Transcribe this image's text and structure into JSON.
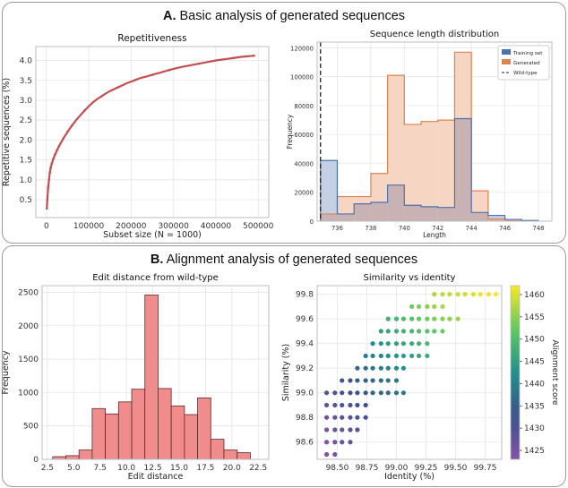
{
  "sections": {
    "a": {
      "letter": "A.",
      "title": "Basic analysis of generated sequences"
    },
    "b": {
      "letter": "B.",
      "title": "Alignment analysis of generated sequences"
    }
  },
  "colors": {
    "repetitive_line": "#c44e52",
    "training": "#4c72b0",
    "training_fill": "#c5d0e4",
    "generated": "#dd8452",
    "generated_fill": "#f6d6c3",
    "overlap_fill": "#c8b2b4",
    "wildtype_line": "#222222",
    "edit_hist_fill": "#f08c8c",
    "edit_hist_edge": "#5a2a2a",
    "grid": "#e6e6e6"
  },
  "chart_data": [
    {
      "id": "repetitiveness",
      "type": "line",
      "title": "Repetitiveness",
      "xlabel": "Subset size (N = 1000)",
      "ylabel": "Repetitive sequences (%)",
      "xlim": [
        -25000,
        525000
      ],
      "ylim": [
        0.05,
        4.35
      ],
      "xticks": [
        0,
        100000,
        200000,
        300000,
        400000,
        500000
      ],
      "yticks": [
        0.5,
        1.0,
        1.5,
        2.0,
        2.5,
        3.0,
        3.5,
        4.0
      ],
      "x": [
        1000,
        2000,
        4000,
        6000,
        8000,
        10000,
        13000,
        16000,
        20000,
        25000,
        30000,
        40000,
        50000,
        60000,
        70000,
        80000,
        90000,
        100000,
        110000,
        120000,
        130000,
        140000,
        150000,
        160000,
        170000,
        180000,
        190000,
        200000,
        210000,
        220000,
        230000,
        240000,
        250000,
        260000,
        270000,
        280000,
        290000,
        300000,
        320000,
        340000,
        360000,
        380000,
        400000,
        420000,
        440000,
        460000,
        480000,
        490000
      ],
      "y": [
        0.28,
        0.5,
        0.8,
        1.0,
        1.18,
        1.3,
        1.42,
        1.52,
        1.63,
        1.74,
        1.85,
        2.04,
        2.21,
        2.36,
        2.5,
        2.62,
        2.74,
        2.85,
        2.95,
        3.03,
        3.1,
        3.17,
        3.23,
        3.28,
        3.33,
        3.38,
        3.43,
        3.47,
        3.51,
        3.55,
        3.58,
        3.61,
        3.64,
        3.67,
        3.7,
        3.73,
        3.76,
        3.79,
        3.84,
        3.88,
        3.92,
        3.96,
        4.0,
        4.03,
        4.06,
        4.09,
        4.11,
        4.12
      ]
    },
    {
      "id": "length-distribution",
      "type": "histogram",
      "title": "Sequence length distribution",
      "xlabel": "Length",
      "ylabel": "Frequency",
      "xlim": [
        734.8,
        748.8
      ],
      "ylim": [
        0,
        124000
      ],
      "xticks": [
        736,
        738,
        740,
        742,
        744,
        746,
        748
      ],
      "yticks": [
        0,
        20000,
        40000,
        60000,
        80000,
        100000,
        120000
      ],
      "bin_edges": [
        735,
        736,
        737,
        738,
        739,
        740,
        741,
        742,
        743,
        744,
        745,
        746,
        747,
        748
      ],
      "series": [
        {
          "name": "Training set",
          "values": [
            42000,
            5000,
            12000,
            13000,
            25000,
            11000,
            10000,
            9500,
            71000,
            6000,
            4000,
            1200,
            500
          ]
        },
        {
          "name": "Generated",
          "values": [
            5000,
            17000,
            17000,
            33000,
            101000,
            67000,
            69000,
            70000,
            117000,
            21000,
            1500,
            300,
            100
          ]
        }
      ],
      "vline": {
        "name": "Wild-type",
        "x": 735
      },
      "legend": "top-right"
    },
    {
      "id": "edit-distance",
      "type": "histogram",
      "title": "Edit distance from wild-type",
      "xlabel": "Edit distance",
      "ylabel": "Frequency",
      "xlim": [
        2.0,
        23.5
      ],
      "ylim": [
        0,
        2600
      ],
      "xticks": [
        2.5,
        5.0,
        7.5,
        10.0,
        12.5,
        15.0,
        17.5,
        20.0,
        22.5
      ],
      "yticks": [
        0,
        500,
        1000,
        1500,
        2000,
        2500
      ],
      "bin_edges": [
        3,
        4.25,
        5.5,
        6.75,
        8,
        9.25,
        10.5,
        11.75,
        13,
        14.25,
        15.5,
        16.75,
        18,
        19.25,
        20.5,
        21.75
      ],
      "values": [
        40,
        55,
        140,
        760,
        680,
        860,
        1050,
        2460,
        1060,
        800,
        670,
        920,
        300,
        140,
        100
      ]
    },
    {
      "id": "similarity-vs-identity",
      "type": "scatter",
      "title": "Similarity vs identity",
      "xlabel": "Identity (%)",
      "ylabel": "Similarity (%)",
      "xlim": [
        98.33,
        99.89
      ],
      "ylim": [
        98.46,
        99.87
      ],
      "xticks": [
        98.5,
        98.75,
        99.0,
        99.25,
        99.5,
        99.75
      ],
      "yticks": [
        98.6,
        98.8,
        99.0,
        99.2,
        99.4,
        99.6,
        99.8
      ],
      "colorbar": {
        "label": "Alignment score",
        "min": 1423,
        "max": 1462,
        "ticks": [
          1425,
          1430,
          1435,
          1440,
          1445,
          1450,
          1455,
          1460
        ]
      },
      "points": [
        [
          98.41,
          98.5,
          1423
        ],
        [
          98.48,
          98.5,
          1424
        ],
        [
          98.41,
          98.6,
          1424
        ],
        [
          98.48,
          98.6,
          1425
        ],
        [
          98.54,
          98.6,
          1426
        ],
        [
          98.61,
          98.6,
          1427
        ],
        [
          98.41,
          98.7,
          1425
        ],
        [
          98.48,
          98.7,
          1426
        ],
        [
          98.54,
          98.7,
          1427
        ],
        [
          98.61,
          98.7,
          1428
        ],
        [
          98.67,
          98.7,
          1429
        ],
        [
          98.41,
          98.8,
          1426
        ],
        [
          98.48,
          98.8,
          1427
        ],
        [
          98.54,
          98.8,
          1428
        ],
        [
          98.61,
          98.8,
          1429
        ],
        [
          98.67,
          98.8,
          1430
        ],
        [
          98.74,
          98.8,
          1431
        ],
        [
          98.41,
          98.9,
          1428
        ],
        [
          98.48,
          98.9,
          1429
        ],
        [
          98.54,
          98.9,
          1430
        ],
        [
          98.61,
          98.9,
          1431
        ],
        [
          98.67,
          98.9,
          1432
        ],
        [
          98.74,
          98.9,
          1433
        ],
        [
          98.41,
          99.0,
          1429
        ],
        [
          98.48,
          99.0,
          1430
        ],
        [
          98.54,
          99.0,
          1431
        ],
        [
          98.61,
          99.0,
          1432
        ],
        [
          98.67,
          99.0,
          1433
        ],
        [
          98.74,
          99.0,
          1434
        ],
        [
          98.8,
          99.0,
          1435
        ],
        [
          98.87,
          99.0,
          1436
        ],
        [
          98.93,
          99.0,
          1437
        ],
        [
          99.0,
          99.0,
          1438
        ],
        [
          99.06,
          99.0,
          1439
        ],
        [
          98.54,
          99.1,
          1432
        ],
        [
          98.61,
          99.1,
          1433
        ],
        [
          98.67,
          99.1,
          1434
        ],
        [
          98.74,
          99.1,
          1435
        ],
        [
          98.8,
          99.1,
          1436
        ],
        [
          98.87,
          99.1,
          1437
        ],
        [
          98.93,
          99.1,
          1438
        ],
        [
          99.0,
          99.1,
          1439
        ],
        [
          98.67,
          99.2,
          1436
        ],
        [
          98.74,
          99.2,
          1437
        ],
        [
          98.8,
          99.2,
          1438
        ],
        [
          98.87,
          99.2,
          1439
        ],
        [
          98.93,
          99.2,
          1440
        ],
        [
          99.0,
          99.2,
          1441
        ],
        [
          99.06,
          99.2,
          1442
        ],
        [
          98.74,
          99.3,
          1439
        ],
        [
          98.8,
          99.3,
          1440
        ],
        [
          98.87,
          99.3,
          1441
        ],
        [
          98.93,
          99.3,
          1442
        ],
        [
          99.0,
          99.3,
          1443
        ],
        [
          99.06,
          99.3,
          1444
        ],
        [
          99.13,
          99.3,
          1445
        ],
        [
          99.19,
          99.3,
          1446
        ],
        [
          99.26,
          99.3,
          1447
        ],
        [
          98.8,
          99.4,
          1442
        ],
        [
          98.87,
          99.4,
          1443
        ],
        [
          98.93,
          99.4,
          1444
        ],
        [
          99.0,
          99.4,
          1445
        ],
        [
          99.06,
          99.4,
          1446
        ],
        [
          99.13,
          99.4,
          1447
        ],
        [
          99.19,
          99.4,
          1448
        ],
        [
          99.26,
          99.4,
          1449
        ],
        [
          98.87,
          99.5,
          1445
        ],
        [
          98.93,
          99.5,
          1446
        ],
        [
          99.0,
          99.5,
          1447
        ],
        [
          99.06,
          99.5,
          1448
        ],
        [
          99.13,
          99.5,
          1449
        ],
        [
          99.19,
          99.5,
          1450
        ],
        [
          99.26,
          99.5,
          1451
        ],
        [
          99.32,
          99.5,
          1452
        ],
        [
          99.39,
          99.5,
          1453
        ],
        [
          98.93,
          99.6,
          1448
        ],
        [
          99.0,
          99.6,
          1449
        ],
        [
          99.06,
          99.6,
          1450
        ],
        [
          99.13,
          99.6,
          1451
        ],
        [
          99.19,
          99.6,
          1452
        ],
        [
          99.26,
          99.6,
          1453
        ],
        [
          99.32,
          99.6,
          1454
        ],
        [
          99.39,
          99.6,
          1455
        ],
        [
          99.45,
          99.6,
          1455
        ],
        [
          99.52,
          99.6,
          1456
        ],
        [
          99.13,
          99.7,
          1453
        ],
        [
          99.19,
          99.7,
          1454
        ],
        [
          99.26,
          99.7,
          1455
        ],
        [
          99.32,
          99.7,
          1456
        ],
        [
          99.39,
          99.7,
          1457
        ],
        [
          99.32,
          99.8,
          1457
        ],
        [
          99.39,
          99.8,
          1458
        ],
        [
          99.45,
          99.8,
          1458
        ],
        [
          99.52,
          99.8,
          1459
        ],
        [
          99.58,
          99.8,
          1459
        ],
        [
          99.65,
          99.8,
          1460
        ],
        [
          99.71,
          99.8,
          1461
        ],
        [
          99.78,
          99.8,
          1461
        ],
        [
          99.84,
          99.8,
          1462
        ]
      ]
    }
  ]
}
